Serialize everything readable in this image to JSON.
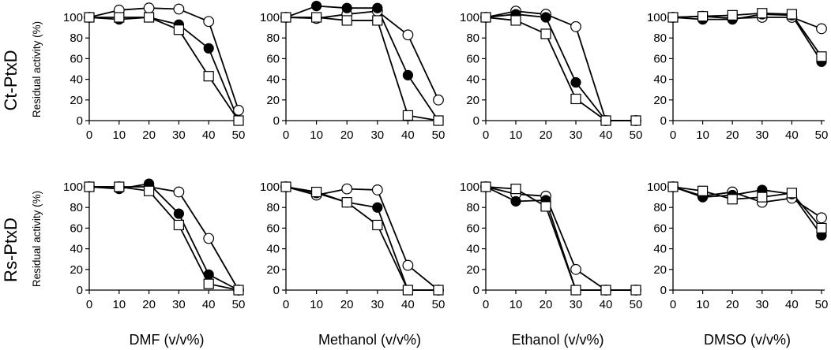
{
  "figure": {
    "row_labels": [
      "Ct-PtxD",
      "Rs-PtxD"
    ],
    "ylabel": "Residual activity (%)",
    "xlabels": [
      "DMF (v/v%)",
      "Methanol (v/v%)",
      "Ethanol (v/v%)",
      "DMSO (v/v%)"
    ],
    "colors": {
      "ink": "#000000",
      "open_fill": "#ffffff",
      "filled": "#000000"
    },
    "markers": {
      "open_circle": "circle-open",
      "filled_circle": "circle-filled",
      "open_square": "square-open"
    }
  },
  "chart_data": [
    {
      "type": "line",
      "row": "Ct-PtxD",
      "xlabel": "DMF (v/v%)",
      "ylabel": "Residual activity (%)",
      "x": [
        0,
        10,
        20,
        30,
        40,
        50
      ],
      "xlim": [
        0,
        50
      ],
      "ylim": [
        0,
        100
      ],
      "yticks": [
        0,
        20,
        40,
        60,
        80,
        100
      ],
      "xticks": [
        0,
        10,
        20,
        30,
        40,
        50
      ],
      "series": [
        {
          "marker": "open_circle",
          "values": [
            100,
            107,
            109,
            108,
            96,
            10
          ]
        },
        {
          "marker": "filled_circle",
          "values": [
            100,
            98,
            100,
            93,
            70,
            0
          ]
        },
        {
          "marker": "open_square",
          "values": [
            100,
            100,
            100,
            88,
            43,
            0
          ]
        }
      ]
    },
    {
      "type": "line",
      "row": "Ct-PtxD",
      "xlabel": "Methanol (v/v%)",
      "ylabel": "",
      "x": [
        0,
        10,
        20,
        30,
        40,
        50
      ],
      "xlim": [
        0,
        50
      ],
      "ylim": [
        0,
        100
      ],
      "yticks": [
        0,
        20,
        40,
        60,
        80,
        100
      ],
      "xticks": [
        0,
        10,
        20,
        30,
        40,
        50
      ],
      "series": [
        {
          "marker": "open_circle",
          "values": [
            100,
            99,
            103,
            106,
            83,
            20
          ]
        },
        {
          "marker": "filled_circle",
          "values": [
            100,
            111,
            109,
            109,
            44,
            0
          ]
        },
        {
          "marker": "open_square",
          "values": [
            100,
            100,
            97,
            97,
            5,
            0
          ]
        }
      ]
    },
    {
      "type": "line",
      "row": "Ct-PtxD",
      "xlabel": "Ethanol (v/v%)",
      "ylabel": "",
      "x": [
        0,
        10,
        20,
        30,
        40,
        50
      ],
      "xlim": [
        0,
        50
      ],
      "ylim": [
        0,
        100
      ],
      "yticks": [
        0,
        20,
        40,
        60,
        80,
        100
      ],
      "xticks": [
        0,
        10,
        20,
        30,
        40,
        50
      ],
      "series": [
        {
          "marker": "open_circle",
          "values": [
            100,
            106,
            103,
            91,
            0,
            0
          ]
        },
        {
          "marker": "filled_circle",
          "values": [
            100,
            103,
            100,
            37,
            0,
            0
          ]
        },
        {
          "marker": "open_square",
          "values": [
            100,
            97,
            84,
            21,
            0,
            0
          ]
        }
      ]
    },
    {
      "type": "line",
      "row": "Ct-PtxD",
      "xlabel": "DMSO (v/v%)",
      "ylabel": "",
      "x": [
        0,
        10,
        20,
        30,
        40,
        50
      ],
      "xlim": [
        0,
        50
      ],
      "ylim": [
        0,
        100
      ],
      "yticks": [
        0,
        20,
        40,
        60,
        80,
        100
      ],
      "xticks": [
        0,
        10,
        20,
        30,
        40,
        50
      ],
      "series": [
        {
          "marker": "open_circle",
          "values": [
            100,
            101,
            99,
            100,
            100,
            89
          ]
        },
        {
          "marker": "filled_circle",
          "values": [
            100,
            98,
            98,
            103,
            102,
            57
          ]
        },
        {
          "marker": "open_square",
          "values": [
            100,
            101,
            102,
            104,
            103,
            62
          ]
        }
      ]
    },
    {
      "type": "line",
      "row": "Rs-PtxD",
      "xlabel": "DMF (v/v%)",
      "ylabel": "Residual activity (%)",
      "x": [
        0,
        10,
        20,
        30,
        40,
        50
      ],
      "xlim": [
        0,
        50
      ],
      "ylim": [
        0,
        100
      ],
      "yticks": [
        0,
        20,
        40,
        60,
        80,
        100
      ],
      "xticks": [
        0,
        10,
        20,
        30,
        40,
        50
      ],
      "series": [
        {
          "marker": "open_circle",
          "values": [
            100,
            100,
            100,
            95,
            50,
            0
          ]
        },
        {
          "marker": "filled_circle",
          "values": [
            100,
            98,
            103,
            74,
            15,
            0
          ]
        },
        {
          "marker": "open_square",
          "values": [
            100,
            100,
            96,
            63,
            6,
            0
          ]
        }
      ]
    },
    {
      "type": "line",
      "row": "Rs-PtxD",
      "xlabel": "Methanol (v/v%)",
      "ylabel": "",
      "x": [
        0,
        10,
        20,
        30,
        40,
        50
      ],
      "xlim": [
        0,
        50
      ],
      "ylim": [
        0,
        100
      ],
      "yticks": [
        0,
        20,
        40,
        60,
        80,
        100
      ],
      "xticks": [
        0,
        10,
        20,
        30,
        40,
        50
      ],
      "series": [
        {
          "marker": "open_circle",
          "values": [
            100,
            92,
            98,
            97,
            24,
            0
          ]
        },
        {
          "marker": "filled_circle",
          "values": [
            100,
            94,
            85,
            80,
            0,
            0
          ]
        },
        {
          "marker": "open_square",
          "values": [
            100,
            95,
            85,
            63,
            0,
            0
          ]
        }
      ]
    },
    {
      "type": "line",
      "row": "Rs-PtxD",
      "xlabel": "Ethanol (v/v%)",
      "ylabel": "",
      "x": [
        0,
        10,
        20,
        30,
        40,
        50
      ],
      "xlim": [
        0,
        50
      ],
      "ylim": [
        0,
        100
      ],
      "yticks": [
        0,
        20,
        40,
        60,
        80,
        100
      ],
      "xticks": [
        0,
        10,
        20,
        30,
        40,
        50
      ],
      "series": [
        {
          "marker": "open_circle",
          "values": [
            100,
            93,
            91,
            20,
            0,
            0
          ]
        },
        {
          "marker": "filled_circle",
          "values": [
            100,
            86,
            87,
            0,
            0,
            0
          ]
        },
        {
          "marker": "open_square",
          "values": [
            100,
            98,
            81,
            0,
            0,
            0
          ]
        }
      ]
    },
    {
      "type": "line",
      "row": "Rs-PtxD",
      "xlabel": "DMSO (v/v%)",
      "ylabel": "",
      "x": [
        0,
        10,
        20,
        30,
        40,
        50
      ],
      "xlim": [
        0,
        50
      ],
      "ylim": [
        0,
        100
      ],
      "yticks": [
        0,
        20,
        40,
        60,
        80,
        100
      ],
      "xticks": [
        0,
        10,
        20,
        30,
        40,
        50
      ],
      "series": [
        {
          "marker": "open_circle",
          "values": [
            100,
            91,
            95,
            85,
            89,
            70
          ]
        },
        {
          "marker": "filled_circle",
          "values": [
            100,
            90,
            92,
            97,
            93,
            53
          ]
        },
        {
          "marker": "open_square",
          "values": [
            100,
            96,
            88,
            90,
            94,
            60
          ]
        }
      ]
    }
  ]
}
